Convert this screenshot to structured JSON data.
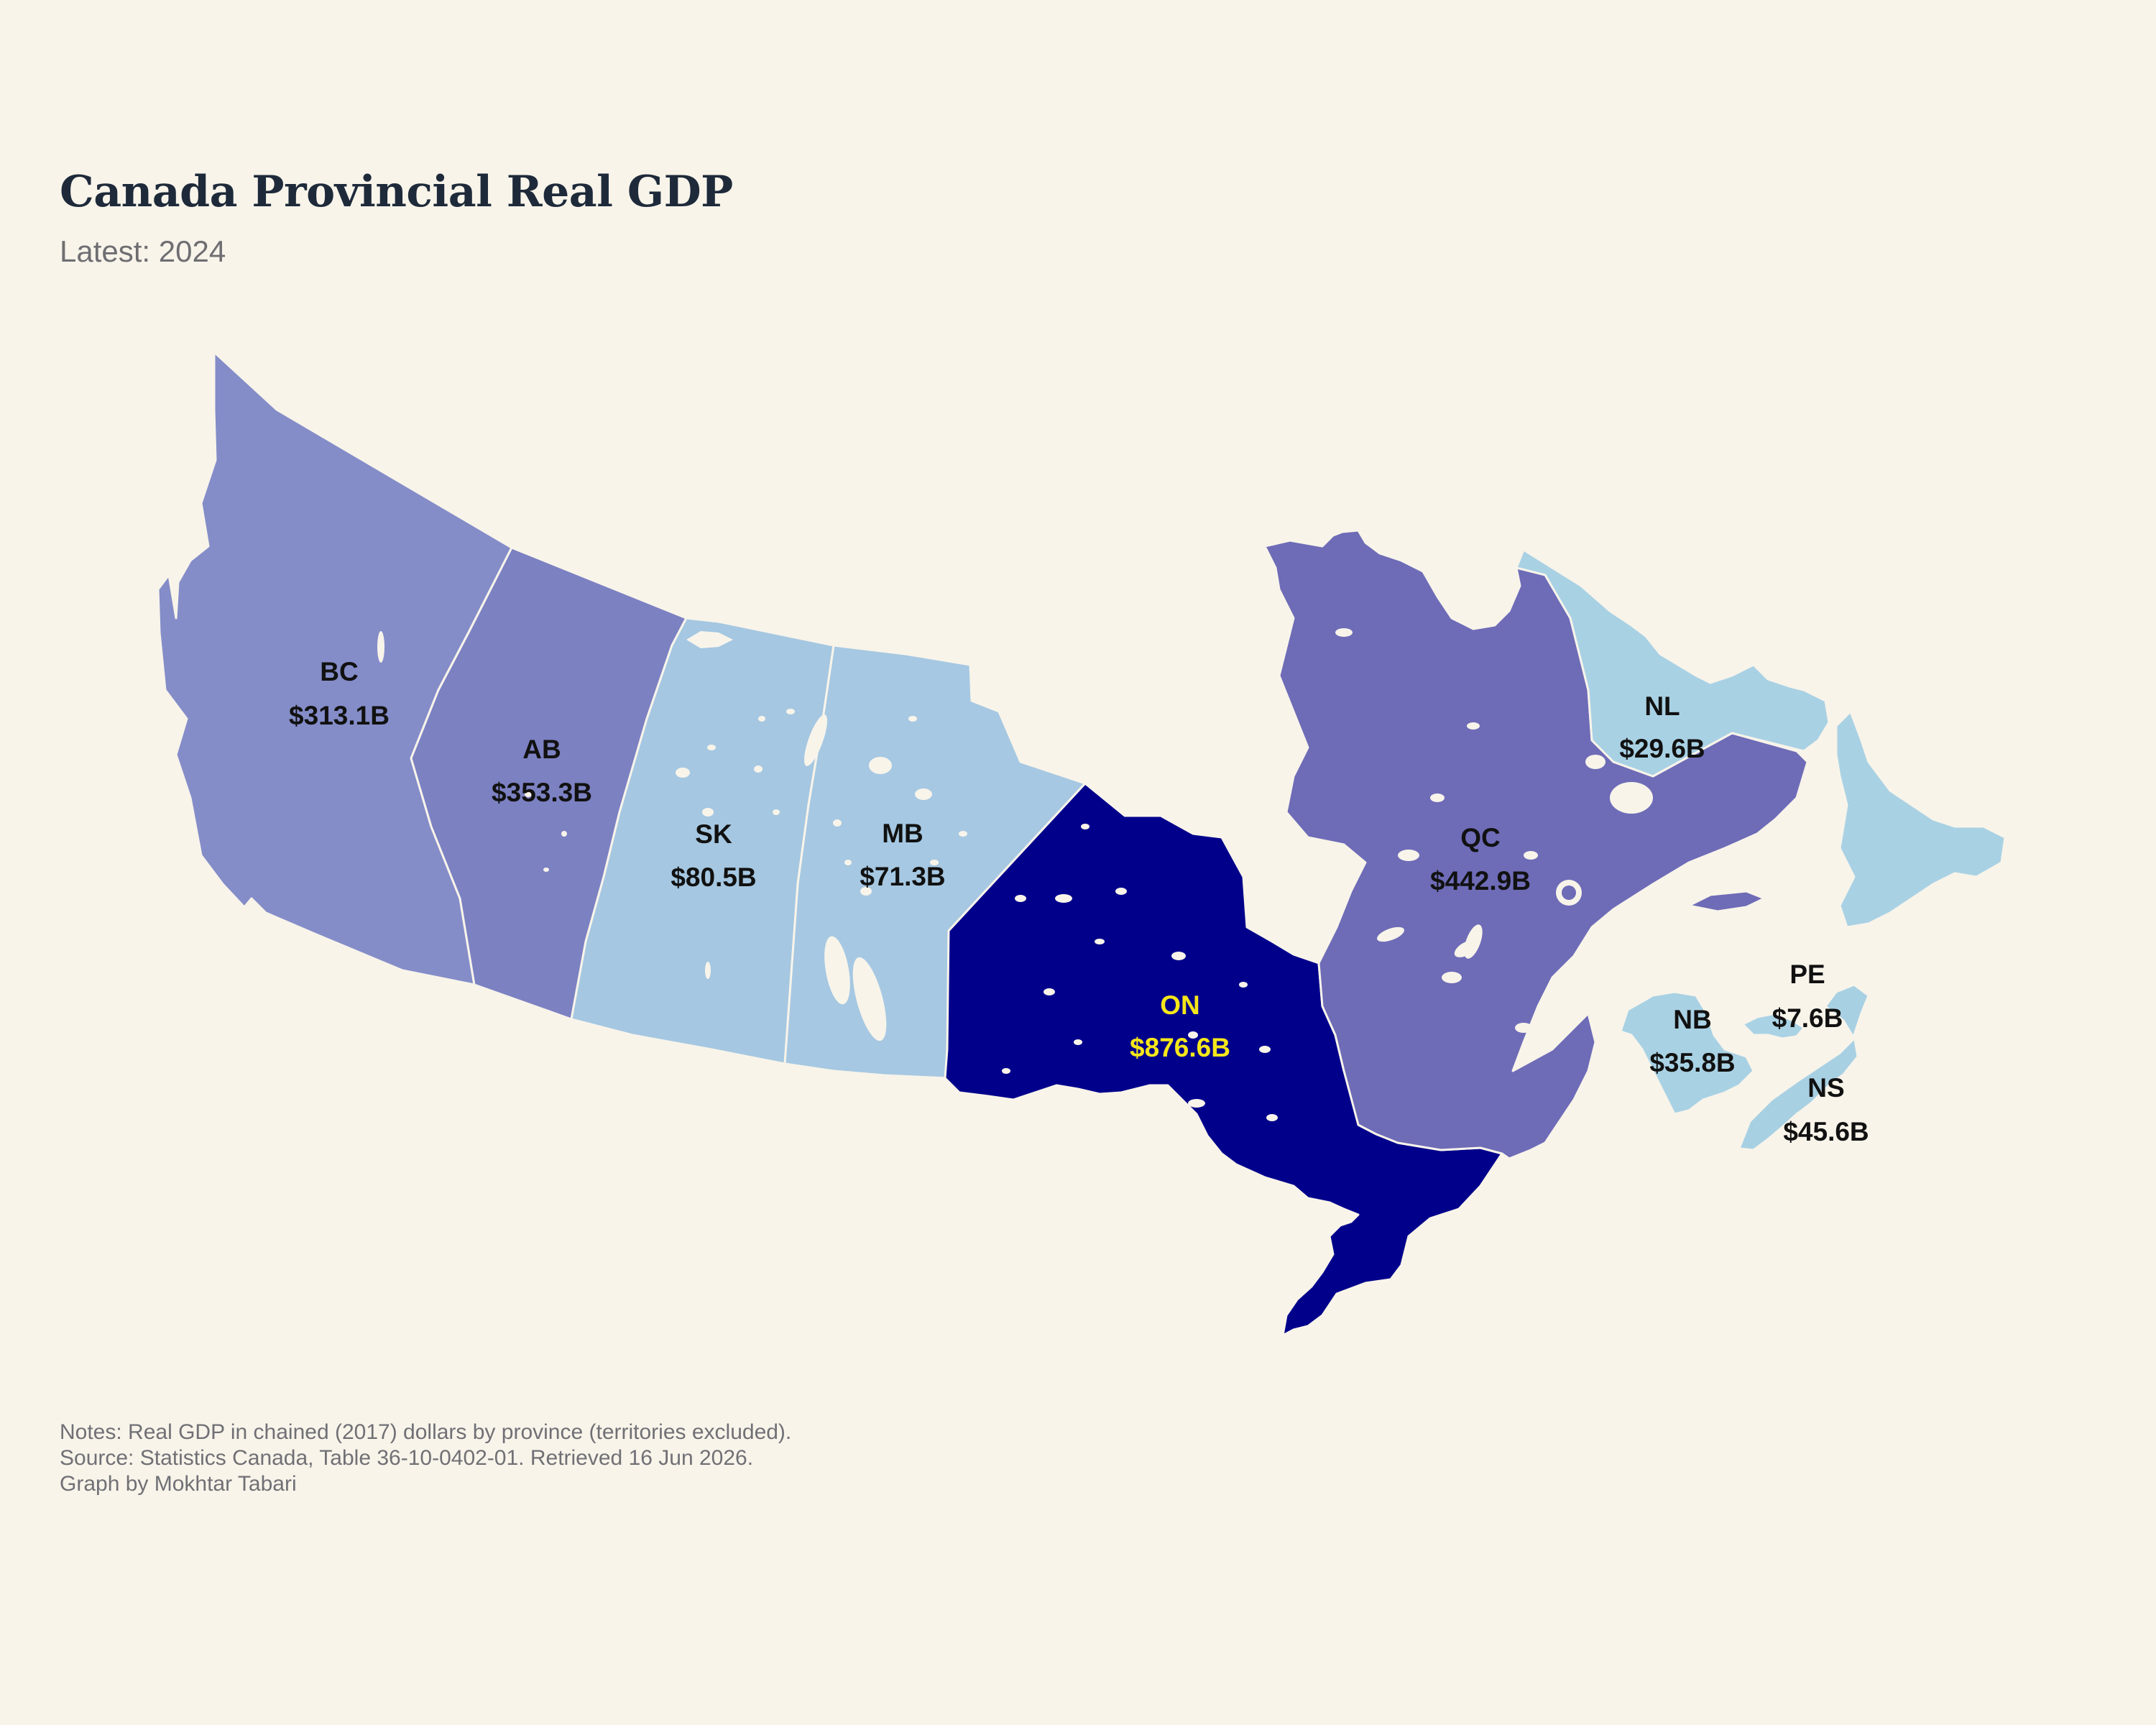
{
  "title": "Canada Provincial Real GDP",
  "subtitle": "Latest: 2024",
  "notes": [
    "Notes: Real GDP in chained (2017) dollars by province (territories excluded).",
    "Source: Statistics Canada, Table 36-10-0402-01. Retrieved 16 Jun 2026.",
    "Graph by Mokhtar Tabari"
  ],
  "colors": {
    "background": "#f8f4ea",
    "scale_low": "#a6cfe4",
    "scale_mid": "#7b80c3",
    "scale_high": "#00008b",
    "label_default": "#111111",
    "label_highlight": "#f5e61a"
  },
  "provinces": [
    {
      "code": "BC",
      "name": "British Columbia",
      "value_label": "$313.1B",
      "gdp_billion": 313.1,
      "fill": "#848dc8"
    },
    {
      "code": "AB",
      "name": "Alberta",
      "value_label": "$353.3B",
      "gdp_billion": 353.3,
      "fill": "#7c81c2"
    },
    {
      "code": "SK",
      "name": "Saskatchewan",
      "value_label": "$80.5B",
      "gdp_billion": 80.5,
      "fill": "#a5c7e1"
    },
    {
      "code": "MB",
      "name": "Manitoba",
      "value_label": "$71.3B",
      "gdp_billion": 71.3,
      "fill": "#a6c8e2"
    },
    {
      "code": "ON",
      "name": "Ontario",
      "value_label": "$876.6B",
      "gdp_billion": 876.6,
      "fill": "#00008b"
    },
    {
      "code": "QC",
      "name": "Quebec",
      "value_label": "$442.9B",
      "gdp_billion": 442.9,
      "fill": "#6e6cb7"
    },
    {
      "code": "NL",
      "name": "Newfoundland and Labrador",
      "value_label": "$29.6B",
      "gdp_billion": 29.6,
      "fill": "#a9d1e4"
    },
    {
      "code": "NB",
      "name": "New Brunswick",
      "value_label": "$35.8B",
      "gdp_billion": 35.8,
      "fill": "#a9d1e4"
    },
    {
      "code": "NS",
      "name": "Nova Scotia",
      "value_label": "$45.6B",
      "gdp_billion": 45.6,
      "fill": "#a8d0e3"
    },
    {
      "code": "PE",
      "name": "Prince Edward Island",
      "value_label": "$7.6B",
      "gdp_billion": 7.6,
      "fill": "#aad2e5"
    }
  ]
}
